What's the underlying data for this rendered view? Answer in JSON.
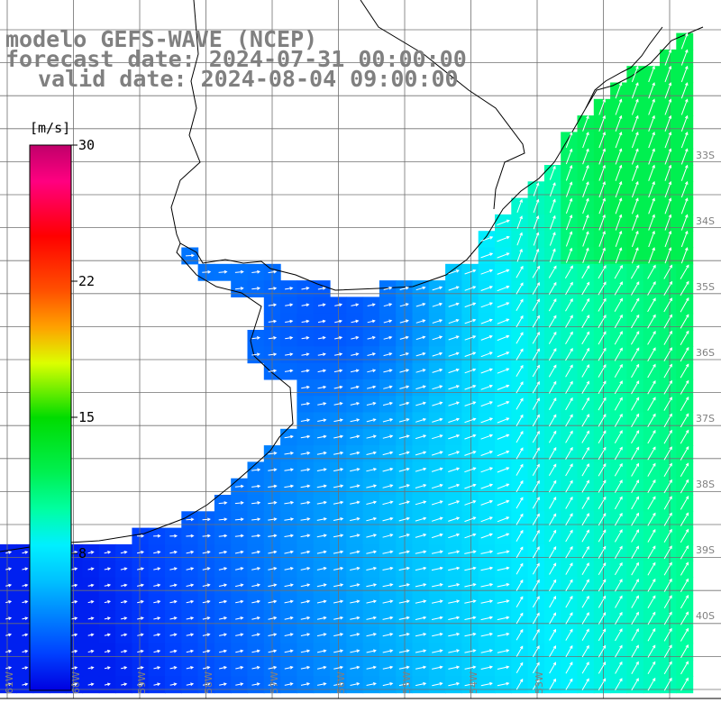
{
  "title": {
    "line1": "modelo GEFS-WAVE (NCEP)",
    "line2": "forecast date: 2024-07-31 00:00:00",
    "line3": "valid date: 2024-08-04 09:00:00"
  },
  "colorbar": {
    "unit": "[m/s]",
    "min": 0,
    "max": 30,
    "ticks": [
      "30",
      "22",
      "15",
      "8"
    ],
    "tick_values": [
      30,
      22,
      15,
      8
    ],
    "colors": [
      "#0000e0",
      "#0060ff",
      "#00c0ff",
      "#00ffff",
      "#00ff80",
      "#00ff00",
      "#80ff00",
      "#ffff00",
      "#ffa000",
      "#ff5000",
      "#ff0000",
      "#ff0080",
      "#c0006a"
    ]
  },
  "map": {
    "variable": "wind speed and direction",
    "units": "m/s",
    "lat_labels": [
      "33S",
      "34S",
      "35S",
      "36S",
      "37S",
      "38S",
      "39S",
      "40S"
    ],
    "lon_labels": [
      "61W",
      "60W",
      "59W",
      "58W",
      "57W",
      "56W",
      "55W",
      "54W",
      "53W"
    ],
    "ocean_speed_range_ms": [
      1,
      12
    ],
    "prevailing_wind": "south-westerly offshore, weak near river estuary"
  }
}
